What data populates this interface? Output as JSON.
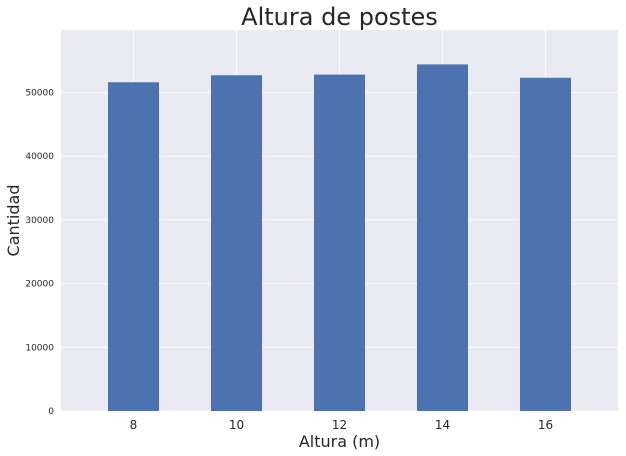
{
  "chart_data": {
    "type": "bar",
    "title": "Altura de postes",
    "xlabel": "Altura (m)",
    "ylabel": "Cantidad",
    "categories": [
      "8",
      "10",
      "12",
      "14",
      "16"
    ],
    "values": [
      51600,
      52700,
      52800,
      54400,
      52300
    ],
    "ylim": [
      0,
      59800
    ],
    "yticks": [
      0,
      10000,
      20000,
      30000,
      40000,
      50000
    ],
    "ytick_labels": [
      "0",
      "10000",
      "20000",
      "30000",
      "40000",
      "50000"
    ],
    "grid": true,
    "legend": "none",
    "colors": {
      "bar": "#4C72B0",
      "plot_background": "#EAEAF2",
      "grid": "#FFFFFF"
    }
  }
}
